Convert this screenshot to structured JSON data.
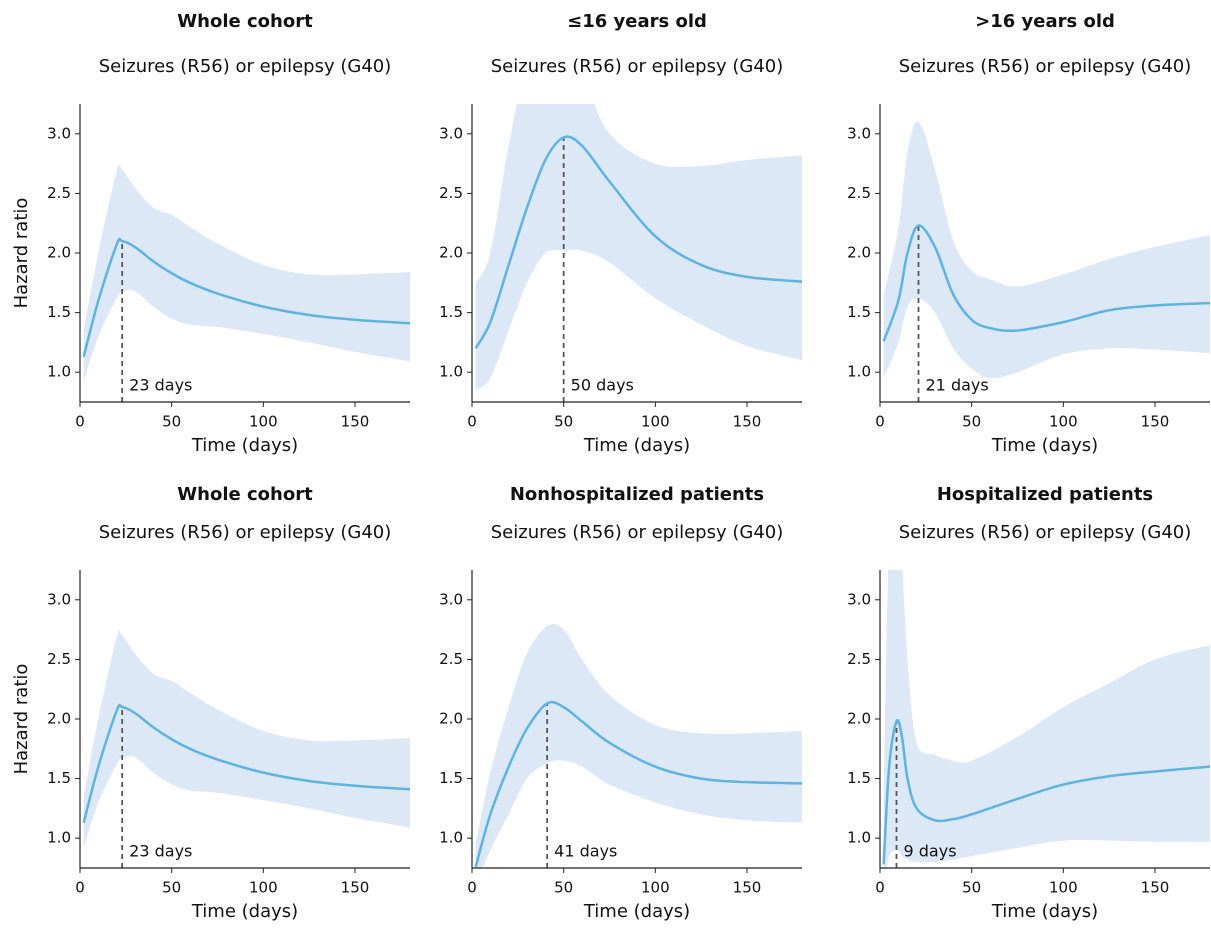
{
  "chart_data": [
    {
      "type": "line",
      "title": "Whole cohort",
      "subtitle": "Seizures (R56) or epilepsy (G40)",
      "xlabel": "Time (days)",
      "ylabel": "Hazard ratio",
      "x": [
        2,
        10,
        20,
        23,
        30,
        40,
        50,
        60,
        75,
        100,
        125,
        150,
        180
      ],
      "values": [
        1.13,
        1.6,
        2.07,
        2.1,
        2.05,
        1.93,
        1.83,
        1.75,
        1.66,
        1.55,
        1.48,
        1.44,
        1.41
      ],
      "lower": [
        0.92,
        1.3,
        1.62,
        1.67,
        1.68,
        1.55,
        1.45,
        1.4,
        1.38,
        1.32,
        1.25,
        1.17,
        1.09
      ],
      "upper": [
        1.35,
        2.0,
        2.68,
        2.7,
        2.55,
        2.38,
        2.32,
        2.22,
        2.08,
        1.9,
        1.82,
        1.82,
        1.84
      ],
      "color": "#5db4e0",
      "band_color": "#dde8f6",
      "annotation": {
        "x": 23,
        "label": "23 days"
      },
      "xlim": [
        0,
        180
      ],
      "xticks": [
        0,
        50,
        100,
        150
      ],
      "ylim": [
        0.75,
        3.25
      ],
      "yticks": [
        {
          "value": 1,
          "label": "1.0"
        },
        1.5,
        {
          "value": 2,
          "label": "2.0"
        },
        2.5,
        {
          "value": 3,
          "label": "3.0"
        }
      ]
    },
    {
      "type": "line",
      "title": "≤16 years old",
      "subtitle": "Seizures (R56) or epilepsy (G40)",
      "xlabel": "Time (days)",
      "x": [
        2,
        10,
        20,
        30,
        40,
        50,
        60,
        75,
        100,
        125,
        150,
        180
      ],
      "values": [
        1.2,
        1.42,
        1.9,
        2.38,
        2.78,
        2.97,
        2.9,
        2.6,
        2.14,
        1.9,
        1.8,
        1.76
      ],
      "lower": [
        0.85,
        0.95,
        1.35,
        1.75,
        2.0,
        2.02,
        2.02,
        1.92,
        1.62,
        1.4,
        1.22,
        1.1
      ],
      "upper": [
        1.75,
        2.0,
        2.9,
        3.6,
        3.8,
        3.7,
        3.5,
        3.0,
        2.75,
        2.73,
        2.78,
        2.82
      ],
      "color": "#5db4e0",
      "band_color": "#dde8f6",
      "annotation": {
        "x": 50,
        "label": "50 days"
      },
      "xlim": [
        0,
        180
      ],
      "xticks": [
        0,
        50,
        100,
        150
      ],
      "ylim": [
        0.75,
        3.25
      ],
      "yticks": [
        {
          "value": 1,
          "label": "1.0"
        },
        1.5,
        {
          "value": 2,
          "label": "2.0"
        },
        2.5,
        {
          "value": 3,
          "label": "3.0"
        }
      ]
    },
    {
      "type": "line",
      "title": ">16 years old",
      "subtitle": "Seizures (R56) or epilepsy (G40)",
      "xlabel": "Time (days)",
      "x": [
        2,
        10,
        15,
        21,
        30,
        40,
        50,
        60,
        75,
        100,
        125,
        150,
        180
      ],
      "values": [
        1.26,
        1.6,
        2.0,
        2.23,
        2.05,
        1.65,
        1.44,
        1.37,
        1.35,
        1.42,
        1.52,
        1.56,
        1.58
      ],
      "lower": [
        0.95,
        1.25,
        1.55,
        1.62,
        1.5,
        1.2,
        1.03,
        0.95,
        1.0,
        1.15,
        1.2,
        1.19,
        1.16
      ],
      "upper": [
        1.65,
        2.2,
        2.85,
        3.1,
        2.7,
        2.1,
        1.85,
        1.78,
        1.72,
        1.82,
        1.95,
        2.05,
        2.15
      ],
      "color": "#5db4e0",
      "band_color": "#dde8f6",
      "annotation": {
        "x": 21,
        "label": "21 days"
      },
      "xlim": [
        0,
        180
      ],
      "xticks": [
        0,
        50,
        100,
        150
      ],
      "ylim": [
        0.75,
        3.25
      ],
      "yticks": [
        {
          "value": 1,
          "label": "1.0"
        },
        1.5,
        {
          "value": 2,
          "label": "2.0"
        },
        2.5,
        {
          "value": 3,
          "label": "3.0"
        }
      ]
    },
    {
      "type": "line",
      "title": "Whole cohort",
      "subtitle": "Seizures (R56) or epilepsy (G40)",
      "xlabel": "Time (days)",
      "ylabel": "Hazard ratio",
      "x": [
        2,
        10,
        20,
        23,
        30,
        40,
        50,
        60,
        75,
        100,
        125,
        150,
        180
      ],
      "values": [
        1.13,
        1.6,
        2.07,
        2.1,
        2.05,
        1.93,
        1.83,
        1.75,
        1.66,
        1.55,
        1.48,
        1.44,
        1.41
      ],
      "lower": [
        0.92,
        1.3,
        1.62,
        1.67,
        1.68,
        1.55,
        1.45,
        1.4,
        1.38,
        1.32,
        1.25,
        1.17,
        1.09
      ],
      "upper": [
        1.35,
        2.0,
        2.68,
        2.7,
        2.55,
        2.38,
        2.32,
        2.22,
        2.08,
        1.9,
        1.82,
        1.82,
        1.84
      ],
      "color": "#5db4e0",
      "band_color": "#dde8f6",
      "annotation": {
        "x": 23,
        "label": "23 days"
      },
      "xlim": [
        0,
        180
      ],
      "xticks": [
        0,
        50,
        100,
        150
      ],
      "ylim": [
        0.75,
        3.25
      ],
      "yticks": [
        {
          "value": 1,
          "label": "1.0"
        },
        1.5,
        {
          "value": 2,
          "label": "2.0"
        },
        2.5,
        {
          "value": 3,
          "label": "3.0"
        }
      ]
    },
    {
      "type": "line",
      "title": "Nonhospitalized patients",
      "subtitle": "Seizures (R56) or epilepsy (G40)",
      "xlabel": "Time (days)",
      "x": [
        2,
        10,
        20,
        30,
        41,
        50,
        60,
        75,
        100,
        125,
        150,
        180
      ],
      "values": [
        0.76,
        1.2,
        1.6,
        1.92,
        2.13,
        2.1,
        1.98,
        1.8,
        1.6,
        1.5,
        1.47,
        1.46
      ],
      "lower": [
        0.6,
        0.9,
        1.2,
        1.5,
        1.63,
        1.65,
        1.6,
        1.45,
        1.3,
        1.2,
        1.15,
        1.13
      ],
      "upper": [
        0.95,
        1.55,
        2.1,
        2.55,
        2.78,
        2.75,
        2.5,
        2.2,
        1.95,
        1.88,
        1.88,
        1.9
      ],
      "color": "#5db4e0",
      "band_color": "#dde8f6",
      "annotation": {
        "x": 41,
        "label": "41 days"
      },
      "xlim": [
        0,
        180
      ],
      "xticks": [
        0,
        50,
        100,
        150
      ],
      "ylim": [
        0.75,
        3.25
      ],
      "yticks": [
        {
          "value": 1,
          "label": "1.0"
        },
        1.5,
        {
          "value": 2,
          "label": "2.0"
        },
        2.5,
        {
          "value": 3,
          "label": "3.0"
        }
      ]
    },
    {
      "type": "line",
      "title": "Hospitalized patients",
      "subtitle": "Seizures (R56) or epilepsy (G40)",
      "xlabel": "Time (days)",
      "x": [
        2,
        5,
        9,
        12,
        15,
        20,
        30,
        40,
        50,
        75,
        100,
        125,
        150,
        180
      ],
      "values": [
        0.78,
        1.6,
        1.98,
        1.85,
        1.5,
        1.25,
        1.15,
        1.16,
        1.2,
        1.33,
        1.45,
        1.52,
        1.56,
        1.6
      ],
      "lower": [
        0.6,
        0.85,
        0.9,
        0.85,
        0.82,
        0.8,
        0.8,
        0.82,
        0.85,
        0.92,
        0.98,
        0.98,
        0.97,
        0.97
      ],
      "upper": [
        1.4,
        3.5,
        3.6,
        3.3,
        2.5,
        1.8,
        1.7,
        1.65,
        1.65,
        1.85,
        2.1,
        2.3,
        2.5,
        2.62
      ],
      "color": "#5db4e0",
      "band_color": "#dde8f6",
      "annotation": {
        "x": 9,
        "label": "9 days"
      },
      "xlim": [
        0,
        180
      ],
      "xticks": [
        0,
        50,
        100,
        150
      ],
      "ylim": [
        0.75,
        3.25
      ],
      "yticks": [
        {
          "value": 1,
          "label": "1.0"
        },
        1.5,
        {
          "value": 2,
          "label": "2.0"
        },
        2.5,
        {
          "value": 3,
          "label": "3.0"
        }
      ]
    }
  ]
}
